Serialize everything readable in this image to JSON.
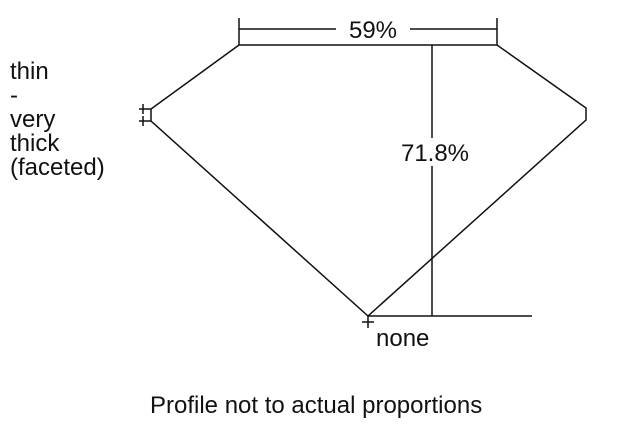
{
  "table_percent": "59%",
  "depth_percent": "71.8%",
  "culet": "none",
  "girdle_lines": [
    "thin",
    "-",
    "very",
    "thick",
    "(faceted)"
  ],
  "caption": "Profile not to actual proportions",
  "line_color": "#111111"
}
